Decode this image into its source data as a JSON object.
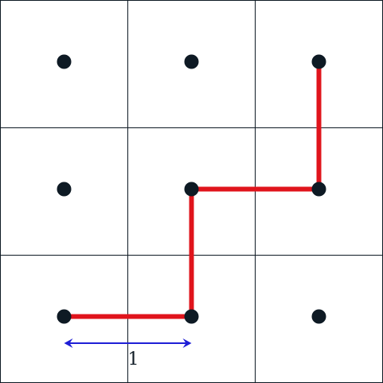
{
  "grid": {
    "rows": 3,
    "cols": 3,
    "line_color": "#0e1a24"
  },
  "dots": [
    {
      "row": 0,
      "col": 0
    },
    {
      "row": 0,
      "col": 1
    },
    {
      "row": 0,
      "col": 2
    },
    {
      "row": 1,
      "col": 0
    },
    {
      "row": 1,
      "col": 1
    },
    {
      "row": 1,
      "col": 2
    },
    {
      "row": 2,
      "col": 0
    },
    {
      "row": 2,
      "col": 1
    },
    {
      "row": 2,
      "col": 2
    }
  ],
  "path": {
    "color": "#e0141c",
    "points": [
      {
        "row": 2,
        "col": 0
      },
      {
        "row": 2,
        "col": 1
      },
      {
        "row": 1,
        "col": 1
      },
      {
        "row": 1,
        "col": 2
      },
      {
        "row": 0,
        "col": 2
      }
    ]
  },
  "measure": {
    "color": "#1f1fd6",
    "from_col": 0,
    "to_col": 1,
    "label": "1"
  }
}
